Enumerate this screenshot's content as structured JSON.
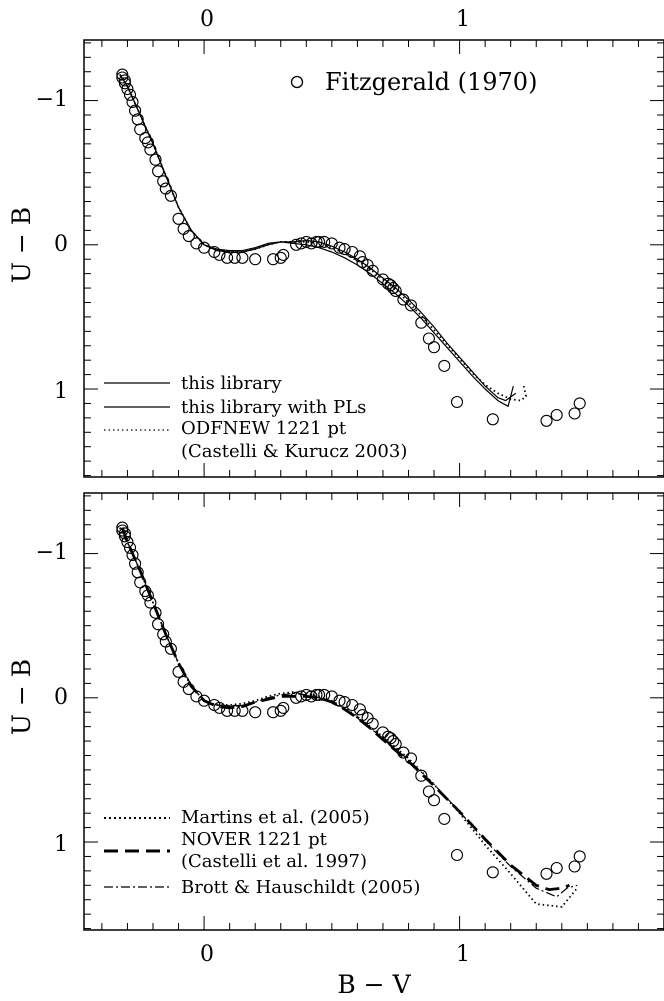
{
  "chart_data": [
    {
      "type": "line",
      "panel": "top",
      "xlabel": "",
      "ylabel": "U − B",
      "xlim": [
        -0.47,
        1.8
      ],
      "ylim": [
        1.61,
        -1.42
      ],
      "x_top_ticks": [
        0,
        1
      ],
      "y_ticks": [
        -1,
        0,
        1
      ],
      "grid": false,
      "observations": {
        "name": "Fitzgerald (1970)",
        "x": [
          -0.32,
          -0.32,
          -0.31,
          -0.31,
          -0.3,
          -0.29,
          -0.28,
          -0.27,
          -0.26,
          -0.25,
          -0.23,
          -0.22,
          -0.21,
          -0.19,
          -0.18,
          -0.16,
          -0.15,
          -0.13,
          -0.1,
          -0.08,
          -0.06,
          -0.03,
          0.0,
          0.04,
          0.06,
          0.09,
          0.12,
          0.15,
          0.2,
          0.27,
          0.3,
          0.31,
          0.36,
          0.38,
          0.4,
          0.42,
          0.44,
          0.45,
          0.47,
          0.5,
          0.53,
          0.55,
          0.58,
          0.61,
          0.62,
          0.64,
          0.66,
          0.7,
          0.72,
          0.73,
          0.74,
          0.75,
          0.78,
          0.81,
          0.85,
          0.88,
          0.9,
          0.94,
          0.99,
          1.13,
          1.34,
          1.38,
          1.45,
          1.47
        ],
        "y": [
          -1.18,
          -1.16,
          -1.14,
          -1.12,
          -1.08,
          -1.04,
          -0.99,
          -0.93,
          -0.87,
          -0.8,
          -0.74,
          -0.71,
          -0.66,
          -0.59,
          -0.51,
          -0.44,
          -0.39,
          -0.34,
          -0.18,
          -0.11,
          -0.06,
          -0.01,
          0.02,
          0.05,
          0.07,
          0.09,
          0.09,
          0.09,
          0.1,
          0.1,
          0.09,
          0.07,
          0.0,
          -0.01,
          -0.02,
          -0.01,
          -0.02,
          -0.02,
          -0.02,
          -0.01,
          0.02,
          0.03,
          0.05,
          0.08,
          0.12,
          0.14,
          0.18,
          0.24,
          0.27,
          0.28,
          0.3,
          0.32,
          0.38,
          0.42,
          0.54,
          0.65,
          0.71,
          0.84,
          1.09,
          1.21,
          1.22,
          1.18,
          1.17,
          1.1
        ]
      },
      "series": [
        {
          "name": "this library",
          "style": "solid",
          "x": [
            -0.33,
            -0.3,
            -0.25,
            -0.2,
            -0.15,
            -0.1,
            -0.05,
            0.0,
            0.05,
            0.1,
            0.15,
            0.2,
            0.25,
            0.3,
            0.35,
            0.4,
            0.45,
            0.5,
            0.55,
            0.6,
            0.65,
            0.7,
            0.75,
            0.8,
            0.85,
            0.9,
            0.95,
            1.0,
            1.05,
            1.1,
            1.15,
            1.19,
            1.21
          ],
          "y": [
            -1.18,
            -1.1,
            -0.9,
            -0.7,
            -0.48,
            -0.26,
            -0.1,
            0.0,
            0.03,
            0.04,
            0.04,
            0.02,
            -0.01,
            -0.02,
            -0.01,
            0.0,
            0.02,
            0.05,
            0.09,
            0.14,
            0.2,
            0.27,
            0.34,
            0.42,
            0.51,
            0.61,
            0.71,
            0.81,
            0.91,
            1.0,
            1.08,
            1.12,
            0.98
          ]
        },
        {
          "name": "this library with PLs",
          "style": "solid",
          "x": [
            -0.33,
            -0.3,
            -0.25,
            -0.2,
            -0.15,
            -0.1,
            -0.05,
            0.0,
            0.05,
            0.1,
            0.15,
            0.2,
            0.25,
            0.3,
            0.35,
            0.4,
            0.45,
            0.5,
            0.55,
            0.6,
            0.65,
            0.7,
            0.75,
            0.8,
            0.85,
            0.9,
            0.95,
            1.0,
            1.05,
            1.1,
            1.15,
            1.18,
            1.22
          ],
          "y": [
            -1.18,
            -1.1,
            -0.9,
            -0.7,
            -0.48,
            -0.26,
            -0.1,
            0.0,
            0.04,
            0.05,
            0.05,
            0.03,
            0.0,
            -0.02,
            -0.02,
            -0.03,
            -0.02,
            0.01,
            0.05,
            0.1,
            0.16,
            0.23,
            0.3,
            0.38,
            0.47,
            0.57,
            0.68,
            0.78,
            0.88,
            0.98,
            1.06,
            1.08,
            1.03
          ]
        },
        {
          "name": "ODFNEW 1221 pt",
          "note": "(Castelli & Kurucz 2003)",
          "style": "dotted",
          "x": [
            -0.33,
            -0.3,
            -0.25,
            -0.2,
            -0.15,
            -0.1,
            -0.05,
            0.0,
            0.05,
            0.1,
            0.15,
            0.2,
            0.25,
            0.3,
            0.35,
            0.4,
            0.45,
            0.5,
            0.55,
            0.6,
            0.65,
            0.7,
            0.75,
            0.8,
            0.85,
            0.9,
            0.95,
            1.0,
            1.05,
            1.1,
            1.15,
            1.2,
            1.24,
            1.26,
            1.25
          ],
          "y": [
            -1.18,
            -1.1,
            -0.9,
            -0.7,
            -0.48,
            -0.26,
            -0.1,
            0.0,
            0.04,
            0.05,
            0.05,
            0.03,
            0.0,
            -0.02,
            -0.02,
            -0.02,
            -0.01,
            0.02,
            0.06,
            0.11,
            0.17,
            0.24,
            0.31,
            0.4,
            0.49,
            0.59,
            0.69,
            0.79,
            0.89,
            0.97,
            1.03,
            1.07,
            1.08,
            1.05,
            0.97
          ]
        }
      ]
    },
    {
      "type": "line",
      "panel": "bottom",
      "xlabel": "B − V",
      "ylabel": "U − B",
      "xlim": [
        -0.47,
        1.8
      ],
      "ylim": [
        1.61,
        -1.42
      ],
      "x_ticks": [
        0,
        1
      ],
      "y_ticks": [
        -1,
        0,
        1
      ],
      "grid": false,
      "observations": {
        "name": "Fitzgerald (1970)",
        "x": [
          -0.32,
          -0.32,
          -0.31,
          -0.31,
          -0.3,
          -0.29,
          -0.28,
          -0.27,
          -0.26,
          -0.25,
          -0.23,
          -0.22,
          -0.21,
          -0.19,
          -0.18,
          -0.16,
          -0.15,
          -0.13,
          -0.1,
          -0.08,
          -0.06,
          -0.03,
          0.0,
          0.04,
          0.06,
          0.09,
          0.12,
          0.15,
          0.2,
          0.27,
          0.3,
          0.31,
          0.36,
          0.38,
          0.4,
          0.42,
          0.44,
          0.45,
          0.47,
          0.5,
          0.53,
          0.55,
          0.58,
          0.61,
          0.62,
          0.64,
          0.66,
          0.7,
          0.72,
          0.73,
          0.74,
          0.75,
          0.78,
          0.81,
          0.85,
          0.88,
          0.9,
          0.94,
          0.99,
          1.13,
          1.34,
          1.38,
          1.45,
          1.47
        ],
        "y": [
          -1.18,
          -1.16,
          -1.14,
          -1.12,
          -1.08,
          -1.04,
          -0.99,
          -0.93,
          -0.87,
          -0.8,
          -0.74,
          -0.71,
          -0.66,
          -0.59,
          -0.51,
          -0.44,
          -0.39,
          -0.34,
          -0.18,
          -0.11,
          -0.06,
          -0.01,
          0.02,
          0.05,
          0.07,
          0.09,
          0.09,
          0.09,
          0.1,
          0.1,
          0.09,
          0.07,
          0.0,
          -0.01,
          -0.02,
          -0.01,
          -0.02,
          -0.02,
          -0.02,
          -0.01,
          0.02,
          0.03,
          0.05,
          0.08,
          0.12,
          0.14,
          0.18,
          0.24,
          0.27,
          0.28,
          0.3,
          0.32,
          0.38,
          0.42,
          0.54,
          0.65,
          0.71,
          0.84,
          1.09,
          1.21,
          1.22,
          1.18,
          1.17,
          1.1
        ]
      },
      "series": [
        {
          "name": "Martins et al. (2005)",
          "style": "dotted",
          "x": [
            -0.33,
            -0.3,
            -0.25,
            -0.2,
            -0.15,
            -0.1,
            -0.05,
            0.0,
            0.05,
            0.1,
            0.15,
            0.2,
            0.25,
            0.3,
            0.35,
            0.4,
            0.45,
            0.5,
            0.55,
            0.6,
            0.65,
            0.7,
            0.8,
            0.9,
            1.0,
            1.1,
            1.2,
            1.3,
            1.4,
            1.46
          ],
          "y": [
            -1.18,
            -1.08,
            -0.88,
            -0.66,
            -0.44,
            -0.24,
            -0.08,
            0.02,
            0.05,
            0.05,
            0.04,
            0.02,
            -0.01,
            -0.03,
            -0.04,
            -0.03,
            -0.01,
            0.02,
            0.07,
            0.13,
            0.2,
            0.27,
            0.42,
            0.6,
            0.8,
            1.02,
            1.22,
            1.43,
            1.45,
            1.32
          ]
        },
        {
          "name": "NOVER 1221 pt",
          "note": "(Castelli et al. 1997)",
          "style": "dashed",
          "x": [
            -0.32,
            -0.3,
            -0.25,
            -0.2,
            -0.15,
            -0.1,
            -0.05,
            0.0,
            0.05,
            0.1,
            0.15,
            0.2,
            0.25,
            0.3,
            0.35,
            0.4,
            0.45,
            0.5,
            0.55,
            0.6,
            0.65,
            0.7,
            0.8,
            0.9,
            1.0,
            1.1,
            1.2,
            1.3,
            1.35,
            1.4,
            1.43
          ],
          "y": [
            -1.18,
            -1.08,
            -0.88,
            -0.66,
            -0.44,
            -0.24,
            -0.08,
            0.02,
            0.06,
            0.07,
            0.06,
            0.03,
            0.01,
            -0.01,
            -0.01,
            -0.01,
            0.0,
            0.03,
            0.08,
            0.14,
            0.21,
            0.29,
            0.44,
            0.61,
            0.79,
            0.98,
            1.16,
            1.3,
            1.33,
            1.32,
            1.3
          ]
        },
        {
          "name": "Brott & Hauschildt (2005)",
          "style": "dash-dot",
          "x": [
            -0.32,
            -0.3,
            -0.25,
            -0.2,
            -0.15,
            -0.1,
            -0.05,
            0.0,
            0.05,
            0.1,
            0.15,
            0.2,
            0.25,
            0.3,
            0.35,
            0.4,
            0.45,
            0.5,
            0.55,
            0.6,
            0.65,
            0.7,
            0.8,
            0.9,
            1.0,
            1.1,
            1.2,
            1.3,
            1.38,
            1.42,
            1.46
          ],
          "y": [
            -1.18,
            -1.08,
            -0.88,
            -0.66,
            -0.44,
            -0.24,
            -0.08,
            0.02,
            0.05,
            0.06,
            0.05,
            0.03,
            0.0,
            -0.02,
            -0.03,
            -0.02,
            0.0,
            0.03,
            0.08,
            0.14,
            0.21,
            0.28,
            0.43,
            0.6,
            0.79,
            0.99,
            1.17,
            1.32,
            1.38,
            1.32,
            1.3
          ]
        }
      ]
    }
  ],
  "legend_labels": {
    "fitzgerald": "Fitzgerald (1970)",
    "this_library": "this library",
    "this_library_pls": "this library with PLs",
    "odfnew_line1": "ODFNEW 1221 pt",
    "odfnew_line2": "(Castelli & Kurucz 2003)",
    "martins": "Martins et al. (2005)",
    "nover_line1": "NOVER 1221 pt",
    "nover_line2": "(Castelli et al. 1997)",
    "brott": "Brott & Hauschildt (2005)"
  },
  "axis_text": {
    "top_panel_ylabel": "U − B",
    "bottom_panel_ylabel": "U − B",
    "bottom_xlabel": "B − V",
    "tick_minus1": "−1",
    "tick_0": "0",
    "tick_1": "1"
  }
}
